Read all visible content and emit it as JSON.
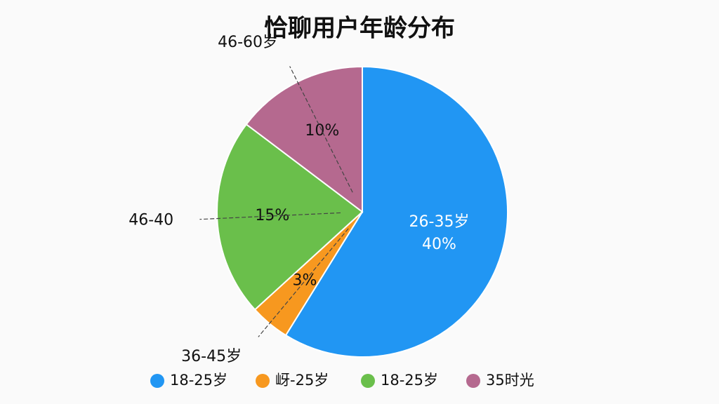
{
  "chart_data": {
    "type": "pie",
    "title": "恰聊用户年龄分布",
    "categories": [
      "18-25岁",
      "岈-25岁",
      "18-25岁",
      "35时光"
    ],
    "slice_labels": [
      "26-35岁",
      "36-45岁",
      "46-40",
      "46-60岁"
    ],
    "values": [
      40,
      3,
      15,
      10
    ],
    "value_labels": [
      "40%",
      "3%",
      "15%",
      "10%"
    ],
    "colors": [
      "#2196f3",
      "#f7981f",
      "#6abf4b",
      "#b5698f"
    ],
    "legend": "bottom"
  }
}
